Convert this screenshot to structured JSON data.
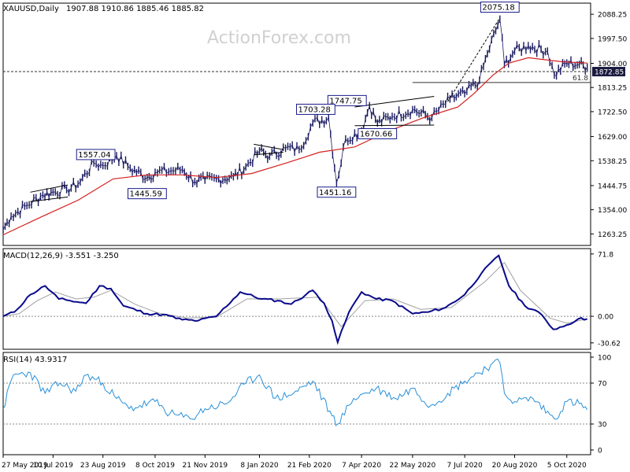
{
  "chart_data": [
    {
      "type": "candlestick",
      "panel": "price",
      "header": {
        "symbol_label": "XAUUSD,Daily",
        "ohlc_label": "1907.88 1910.86 1885.46 1885.82"
      },
      "watermark": "ActionForex.com",
      "ylim": [
        1220,
        2130
      ],
      "yticks": [
        "2088.25",
        "1997.50",
        "1904.00",
        "1813.25",
        "1722.50",
        "1629.00",
        "1538.25",
        "1444.75",
        "1354.00",
        "1263.25"
      ],
      "last_price_label": "1872.85",
      "hline": 1872.85,
      "fib_line": {
        "label": "61.8",
        "value": 1832,
        "from": "22 May 2020"
      },
      "annotations": [
        {
          "label": "2075.18",
          "date": "7 Aug 2020",
          "value": 2075.18
        },
        {
          "label": "1747.75",
          "date": "14 Apr 2020",
          "value": 1747.75
        },
        {
          "label": "1703.28",
          "date": "9 Mar 2020",
          "value": 1703.28
        },
        {
          "label": "1670.66",
          "date": "21 Apr 2020",
          "value": 1670.66
        },
        {
          "label": "1557.04",
          "date": "4 Sep 2019",
          "value": 1557.04
        },
        {
          "label": "1445.59",
          "date": "1 Oct 2019",
          "value": 1445.59
        },
        {
          "label": "1451.16",
          "date": "16 Mar 2020",
          "value": 1451.16
        }
      ],
      "price_path": [
        [
          "27 May 2019",
          1280
        ],
        [
          "3 Jun 2019",
          1330
        ],
        [
          "17 Jun 2019",
          1370
        ],
        [
          "1 Jul 2019",
          1410
        ],
        [
          "10 Jul 2019",
          1420
        ],
        [
          "22 Jul 2019",
          1430
        ],
        [
          "1 Aug 2019",
          1450
        ],
        [
          "15 Aug 2019",
          1530
        ],
        [
          "23 Aug 2019",
          1520
        ],
        [
          "4 Sep 2019",
          1557
        ],
        [
          "16 Sep 2019",
          1510
        ],
        [
          "1 Oct 2019",
          1475
        ],
        [
          "8 Oct 2019",
          1495
        ],
        [
          "22 Oct 2019",
          1500
        ],
        [
          "1 Nov 2019",
          1505
        ],
        [
          "12 Nov 2019",
          1460
        ],
        [
          "21 Nov 2019",
          1465
        ],
        [
          "3 Dec 2019",
          1470
        ],
        [
          "16 Dec 2019",
          1478
        ],
        [
          "27 Dec 2019",
          1515
        ],
        [
          "8 Jan 2020",
          1575
        ],
        [
          "17 Jan 2020",
          1555
        ],
        [
          "31 Jan 2020",
          1585
        ],
        [
          "12 Feb 2020",
          1580
        ],
        [
          "24 Feb 2020",
          1680
        ],
        [
          "9 Mar 2020",
          1700
        ],
        [
          "16 Mar 2020",
          1455
        ],
        [
          "24 Mar 2020",
          1620
        ],
        [
          "7 Apr 2020",
          1650
        ],
        [
          "14 Apr 2020",
          1745
        ],
        [
          "21 Apr 2020",
          1680
        ],
        [
          "4 May 2020",
          1705
        ],
        [
          "22 May 2020",
          1730
        ],
        [
          "8 Jun 2020",
          1700
        ],
        [
          "24 Jun 2020",
          1770
        ],
        [
          "7 Jul 2020",
          1790
        ],
        [
          "20 Jul 2020",
          1840
        ],
        [
          "27 Jul 2020",
          1940
        ],
        [
          "7 Aug 2020",
          2070
        ],
        [
          "11 Aug 2020",
          1900
        ],
        [
          "20 Aug 2020",
          1950
        ],
        [
          "1 Sep 2020",
          1970
        ],
        [
          "18 Sep 2020",
          1950
        ],
        [
          "24 Sep 2020",
          1860
        ],
        [
          "5 Oct 2020",
          1905
        ],
        [
          "16 Oct 2020",
          1900
        ],
        [
          "23 Oct 2020",
          1890
        ]
      ],
      "ma_path": [
        [
          "27 May 2019",
          1260
        ],
        [
          "1 Jul 2019",
          1330
        ],
        [
          "1 Aug 2019",
          1390
        ],
        [
          "1 Sep 2019",
          1470
        ],
        [
          "1 Oct 2019",
          1485
        ],
        [
          "1 Nov 2019",
          1485
        ],
        [
          "1 Dec 2019",
          1475
        ],
        [
          "1 Jan 2020",
          1490
        ],
        [
          "1 Feb 2020",
          1530
        ],
        [
          "1 Mar 2020",
          1570
        ],
        [
          "1 Apr 2020",
          1590
        ],
        [
          "1 May 2020",
          1650
        ],
        [
          "1 Jun 2020",
          1700
        ],
        [
          "1 Jul 2020",
          1740
        ],
        [
          "15 Jul 2020",
          1790
        ],
        [
          "1 Aug 2020",
          1860
        ],
        [
          "15 Aug 2020",
          1905
        ],
        [
          "1 Sep 2020",
          1925
        ],
        [
          "1 Oct 2020",
          1910
        ],
        [
          "23 Oct 2020",
          1905
        ]
      ],
      "trendlines": [
        [
          [
            "20 Jun 2019",
            1420
          ],
          [
            "23 Jul 2019",
            1447
          ]
        ],
        [
          [
            "20 Jun 2019",
            1385
          ],
          [
            "23 Jul 2019",
            1402
          ]
        ],
        [
          [
            "3 Jan 2020",
            1600
          ],
          [
            "29 Jan 2020",
            1580
          ]
        ],
        [
          [
            "3 Jan 2020",
            1560
          ],
          [
            "29 Jan 2020",
            1570
          ]
        ],
        [
          [
            "1 Apr 2020",
            1740
          ],
          [
            "10 Jun 2020",
            1780
          ]
        ],
        [
          [
            "1 Apr 2020",
            1670
          ],
          [
            "10 Jun 2020",
            1672
          ]
        ],
        [
          [
            "22 Jun 2020",
            1760
          ],
          [
            "7 Aug 2020",
            2075
          ]
        ]
      ]
    },
    {
      "type": "line",
      "panel": "macd",
      "label": "MACD(12,26,9) -3.551 -3.250",
      "ylim": [
        -38,
        78
      ],
      "yticks": [
        "71.8",
        "0.00",
        "0.00",
        "-30.62"
      ],
      "macd": [
        [
          "27 May 2019",
          0
        ],
        [
          "6 Jun 2019",
          5
        ],
        [
          "20 Jun 2019",
          25
        ],
        [
          "3 Jul 2019",
          35
        ],
        [
          "15 Jul 2019",
          20
        ],
        [
          "25 Jul 2019",
          18
        ],
        [
          "8 Aug 2019",
          15
        ],
        [
          "20 Aug 2019",
          35
        ],
        [
          "30 Aug 2019",
          32
        ],
        [
          "10 Sep 2019",
          12
        ],
        [
          "1 Oct 2019",
          3
        ],
        [
          "15 Oct 2019",
          2
        ],
        [
          "1 Nov 2019",
          -4
        ],
        [
          "15 Nov 2019",
          -5
        ],
        [
          "1 Dec 2019",
          0
        ],
        [
          "22 Dec 2019",
          28
        ],
        [
          "10 Jan 2020",
          20
        ],
        [
          "24 Jan 2020",
          18
        ],
        [
          "5 Feb 2020",
          14
        ],
        [
          "24 Feb 2020",
          30
        ],
        [
          "5 Mar 2020",
          15
        ],
        [
          "12 Mar 2020",
          -5
        ],
        [
          "17 Mar 2020",
          -30
        ],
        [
          "27 Mar 2020",
          5
        ],
        [
          "7 Apr 2020",
          28
        ],
        [
          "20 Apr 2020",
          20
        ],
        [
          "4 May 2020",
          18
        ],
        [
          "22 May 2020",
          3
        ],
        [
          "5 Jun 2020",
          5
        ],
        [
          "20 Jun 2020",
          10
        ],
        [
          "7 Jul 2020",
          25
        ],
        [
          "22 Jul 2020",
          50
        ],
        [
          "6 Aug 2020",
          70
        ],
        [
          "15 Aug 2020",
          35
        ],
        [
          "29 Aug 2020",
          12
        ],
        [
          "10 Sep 2020",
          5
        ],
        [
          "23 Sep 2020",
          -15
        ],
        [
          "5 Oct 2020",
          -10
        ],
        [
          "15 Oct 2020",
          -3
        ],
        [
          "23 Oct 2020",
          -3
        ]
      ],
      "signal": [
        [
          "27 May 2019",
          0
        ],
        [
          "10 Jun 2019",
          3
        ],
        [
          "26 Jun 2019",
          18
        ],
        [
          "12 Jul 2019",
          28
        ],
        [
          "30 Jul 2019",
          20
        ],
        [
          "15 Aug 2019",
          22
        ],
        [
          "30 Aug 2019",
          30
        ],
        [
          "20 Sep 2019",
          14
        ],
        [
          "10 Oct 2019",
          4
        ],
        [
          "5 Nov 2019",
          -2
        ],
        [
          "1 Dec 2019",
          -1
        ],
        [
          "28 Dec 2019",
          20
        ],
        [
          "25 Jan 2020",
          20
        ],
        [
          "1 Mar 2020",
          22
        ],
        [
          "20 Mar 2020",
          -12
        ],
        [
          "10 Apr 2020",
          18
        ],
        [
          "5 May 2020",
          20
        ],
        [
          "29 May 2020",
          8
        ],
        [
          "25 Jun 2020",
          10
        ],
        [
          "25 Jul 2020",
          40
        ],
        [
          "11 Aug 2020",
          62
        ],
        [
          "25 Aug 2020",
          30
        ],
        [
          "20 Sep 2020",
          -2
        ],
        [
          "5 Oct 2020",
          -8
        ],
        [
          "23 Oct 2020",
          -3
        ]
      ]
    },
    {
      "type": "line",
      "panel": "rsi",
      "label": "RSI(14) 43.9317",
      "ylim": [
        0,
        100
      ],
      "yticks": [
        "100",
        "70",
        "30",
        "0"
      ],
      "rsi": [
        [
          "27 May 2019",
          45
        ],
        [
          "5 Jun 2019",
          78
        ],
        [
          "20 Jun 2019",
          80
        ],
        [
          "3 Jul 2019",
          60
        ],
        [
          "16 Jul 2019",
          70
        ],
        [
          "30 Jul 2019",
          62
        ],
        [
          "8 Aug 2019",
          78
        ],
        [
          "23 Aug 2019",
          70
        ],
        [
          "4 Sep 2019",
          55
        ],
        [
          "15 Sep 2019",
          45
        ],
        [
          "8 Oct 2019",
          52
        ],
        [
          "21 Oct 2019",
          40
        ],
        [
          "8 Nov 2019",
          35
        ],
        [
          "21 Nov 2019",
          45
        ],
        [
          "10 Dec 2019",
          50
        ],
        [
          "27 Dec 2019",
          70
        ],
        [
          "8 Jan 2020",
          78
        ],
        [
          "22 Jan 2020",
          55
        ],
        [
          "7 Feb 2020",
          60
        ],
        [
          "24 Feb 2020",
          72
        ],
        [
          "12 Mar 2020",
          38
        ],
        [
          "17 Mar 2020",
          30
        ],
        [
          "31 Mar 2020",
          55
        ],
        [
          "20 Apr 2020",
          65
        ],
        [
          "7 May 2020",
          55
        ],
        [
          "22 May 2020",
          65
        ],
        [
          "7 Jun 2020",
          48
        ],
        [
          "22 Jun 2020",
          60
        ],
        [
          "7 Jul 2020",
          72
        ],
        [
          "30 Jul 2020",
          88
        ],
        [
          "7 Aug 2020",
          90
        ],
        [
          "11 Aug 2020",
          60
        ],
        [
          "20 Aug 2020",
          52
        ],
        [
          "5 Sep 2020",
          55
        ],
        [
          "24 Sep 2020",
          35
        ],
        [
          "5 Oct 2020",
          52
        ],
        [
          "16 Oct 2020",
          50
        ],
        [
          "23 Oct 2020",
          44
        ]
      ]
    }
  ],
  "x_axis": {
    "labels": [
      [
        "27 May 2019",
        "27 May 2019"
      ],
      [
        "10 Jul 2019",
        "10 Jul 2019"
      ],
      [
        "23 Aug 2019",
        "23 Aug 2019"
      ],
      [
        "8 Oct 2019",
        "8 Oct 2019"
      ],
      [
        "21 Nov 2019",
        "21 Nov 2019"
      ],
      [
        "8 Jan 2020",
        "8 Jan 2020"
      ],
      [
        "21 Feb 2020",
        "21 Feb 2020"
      ],
      [
        "7 Apr 2020",
        "7 Apr 2020"
      ],
      [
        "22 May 2020",
        "22 May 2020"
      ],
      [
        "7 Jul 2020",
        "7 Jul 2020"
      ],
      [
        "20 Aug 2020",
        "20 Aug 2020"
      ],
      [
        "5 Oct 2020",
        "5 Oct 2020"
      ]
    ],
    "start": "27 May 2019",
    "end": "26 Oct 2020"
  },
  "colors": {
    "price": "#1a1a60",
    "ma": "#d42020",
    "macd": "#0a0a8c",
    "signal": "#a0a0a0",
    "rsi": "#2890d8",
    "annotation_border": "#1a1a8c",
    "grid": "#888888"
  }
}
